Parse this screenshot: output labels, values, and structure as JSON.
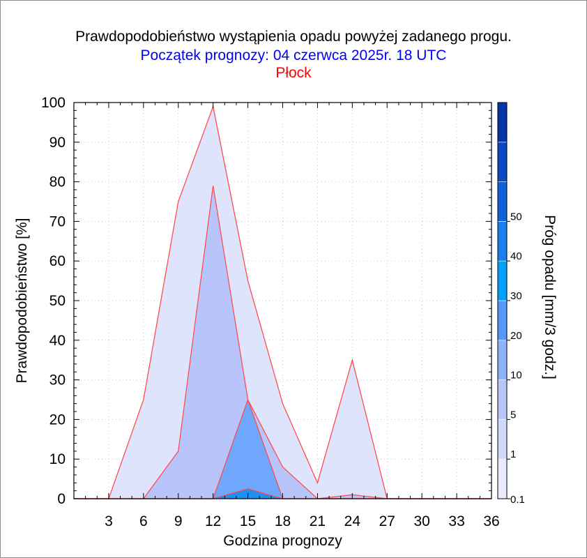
{
  "chart_data": {
    "type": "area",
    "title": "Prawdopodobieństwo wystąpienia opadu powyżej zadanego progu.",
    "subtitle": "Początek prognozy: 04 czerwca 2025r. 18 UTC",
    "location": "Płock",
    "xlabel": "Godzina prognozy",
    "ylabel": "Prawdopodobieństwo [%]",
    "colorbar_label": "Próg opadu [mm/3 godz.]",
    "xlim": [
      0,
      36
    ],
    "ylim": [
      0,
      100
    ],
    "x_ticks": [
      "3",
      "6",
      "9",
      "12",
      "15",
      "18",
      "21",
      "24",
      "27",
      "30",
      "33",
      "36"
    ],
    "y_ticks": [
      "0",
      "10",
      "20",
      "30",
      "40",
      "50",
      "60",
      "70",
      "80",
      "90",
      "100"
    ],
    "x": [
      0,
      3,
      6,
      9,
      12,
      15,
      18,
      21,
      24,
      27,
      30,
      33,
      36
    ],
    "series": [
      {
        "threshold": "0.1",
        "color": "#dfe4fd",
        "values": [
          0,
          0,
          25,
          75,
          99,
          55,
          24,
          4,
          35,
          0,
          0,
          0,
          0
        ]
      },
      {
        "threshold": "1",
        "color": "#b7c5fb",
        "values": [
          0,
          0,
          0,
          12,
          79,
          25,
          8,
          0,
          1,
          0,
          0,
          0,
          0
        ]
      },
      {
        "threshold": "5",
        "color": "#6ea7fb",
        "values": [
          0,
          0,
          0,
          0,
          0,
          25,
          0,
          0,
          0,
          0,
          0,
          0,
          0
        ]
      },
      {
        "threshold": "10",
        "color": "#1f8ff0",
        "values": [
          0,
          0,
          0,
          0,
          0,
          2.5,
          0,
          0,
          0,
          0,
          0,
          0,
          0
        ]
      }
    ],
    "outline_color": "#ff4d4d",
    "colorbar": {
      "labels": [
        "0.1",
        "1",
        "5",
        "10",
        "20",
        "30",
        "40",
        "50"
      ],
      "colors": [
        "#e8ebfe",
        "#d0d9fc",
        "#b7c5fb",
        "#8fb3fa",
        "#5598f7",
        "#00a0ff",
        "#1a7fed",
        "#1060da",
        "#0a48c4",
        "#0535a8"
      ]
    },
    "grid": true
  }
}
